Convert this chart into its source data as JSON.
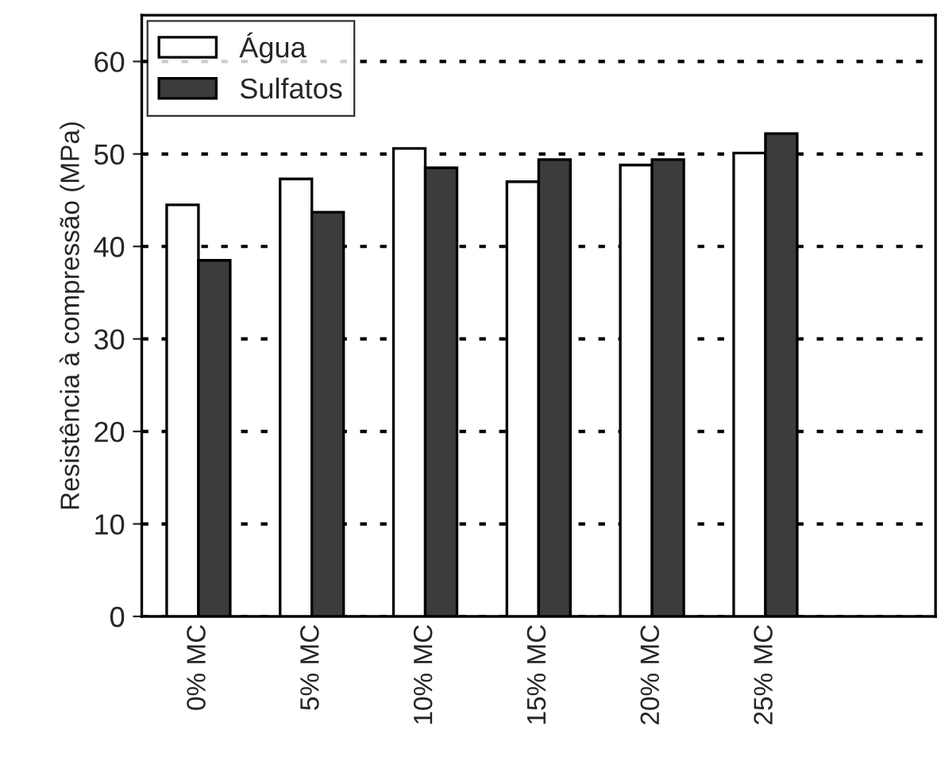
{
  "chart_data": {
    "type": "bar",
    "ylabel": "Resistência à compressão (MPa)",
    "categories": [
      "0% MC",
      "5% MC",
      "10% MC",
      "15% MC",
      "20% MC",
      "25% MC"
    ],
    "series": [
      {
        "name": "Água",
        "color": "#ffffff",
        "values": [
          44.5,
          47.3,
          50.6,
          47.0,
          48.8,
          50.1
        ]
      },
      {
        "name": "Sulfatos",
        "color": "#3c3c3c",
        "values": [
          38.5,
          43.7,
          48.5,
          49.4,
          49.4,
          52.2
        ]
      }
    ],
    "ylim": [
      0,
      65
    ],
    "yticks": [
      0,
      10,
      20,
      30,
      40,
      50,
      60
    ],
    "grid": "y",
    "legend": "top left"
  }
}
